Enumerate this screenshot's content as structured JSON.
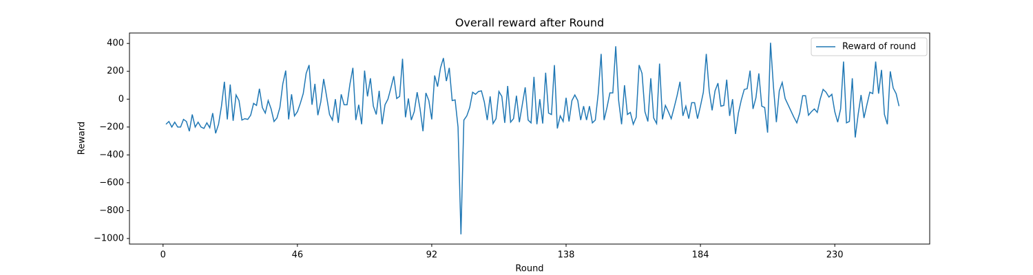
{
  "chart_data": {
    "type": "line",
    "title": "Overall reward after Round",
    "x_label": "Round",
    "y_label": "Reward",
    "x": [
      1,
      2,
      3,
      4,
      5,
      6,
      7,
      8,
      9,
      10,
      11,
      12,
      13,
      14,
      15,
      16,
      17,
      18,
      19,
      20,
      21,
      22,
      23,
      24,
      25,
      26,
      27,
      28,
      29,
      30,
      31,
      32,
      33,
      34,
      35,
      36,
      37,
      38,
      39,
      40,
      41,
      42,
      43,
      44,
      45,
      46,
      47,
      48,
      49,
      50,
      51,
      52,
      53,
      54,
      55,
      56,
      57,
      58,
      59,
      60,
      61,
      62,
      63,
      64,
      65,
      66,
      67,
      68,
      69,
      70,
      71,
      72,
      73,
      74,
      75,
      76,
      77,
      78,
      79,
      80,
      81,
      82,
      83,
      84,
      85,
      86,
      87,
      88,
      89,
      90,
      91,
      92,
      93,
      94,
      95,
      96,
      97,
      98,
      99,
      100,
      101,
      102,
      103,
      104,
      105,
      106,
      107,
      108,
      109,
      110,
      111,
      112,
      113,
      114,
      115,
      116,
      117,
      118,
      119,
      120,
      121,
      122,
      123,
      124,
      125,
      126,
      127,
      128,
      129,
      130,
      131,
      132,
      133,
      134,
      135,
      136,
      137,
      138,
      139,
      140,
      141,
      142,
      143,
      144,
      145,
      146,
      147,
      148,
      149,
      150,
      151,
      152,
      153,
      154,
      155,
      156,
      157,
      158,
      159,
      160,
      161,
      162,
      163,
      164,
      165,
      166,
      167,
      168,
      169,
      170,
      171,
      172,
      173,
      174,
      175,
      176,
      177,
      178,
      179,
      180,
      181,
      182,
      183,
      184,
      185,
      186,
      187,
      188,
      189,
      190,
      191,
      192,
      193,
      194,
      195,
      196,
      197,
      198,
      199,
      200,
      201,
      202,
      203,
      204,
      205,
      206,
      207,
      208,
      209,
      210,
      211,
      212,
      213,
      214,
      215,
      216,
      217,
      218,
      219,
      220,
      221,
      222,
      223,
      224,
      225,
      226,
      227,
      228,
      229,
      230,
      231,
      232,
      233,
      234,
      235,
      236,
      237,
      238,
      239,
      240,
      241,
      242,
      243,
      244,
      245,
      246,
      247,
      248,
      249,
      250,
      251,
      252
    ],
    "series": [
      {
        "name": "Reward of round",
        "color": "#1f77b4",
        "values": [
          -180,
          -160,
          -200,
          -165,
          -200,
          -200,
          -145,
          -160,
          -230,
          -110,
          -200,
          -165,
          -200,
          -210,
          -170,
          -205,
          -100,
          -245,
          -180,
          -50,
          125,
          -145,
          105,
          -155,
          30,
          -10,
          -150,
          -140,
          -145,
          -115,
          -30,
          -45,
          75,
          -60,
          -100,
          -10,
          -70,
          -160,
          -135,
          -60,
          110,
          205,
          -145,
          35,
          -120,
          -90,
          -30,
          40,
          185,
          245,
          -40,
          110,
          -115,
          -20,
          145,
          20,
          -110,
          -150,
          0,
          -170,
          35,
          -40,
          -40,
          110,
          225,
          -150,
          -40,
          -180,
          205,
          20,
          150,
          -50,
          -110,
          60,
          -180,
          -40,
          0,
          80,
          165,
          5,
          20,
          290,
          -130,
          5,
          -150,
          -90,
          50,
          -70,
          -230,
          45,
          -10,
          -145,
          170,
          90,
          225,
          295,
          130,
          225,
          -10,
          -5,
          -200,
          -970,
          -150,
          -120,
          -60,
          50,
          35,
          55,
          60,
          -20,
          -150,
          20,
          -175,
          -140,
          55,
          20,
          -170,
          95,
          -165,
          -140,
          25,
          -165,
          -40,
          85,
          -150,
          -170,
          160,
          -180,
          0,
          -175,
          190,
          -100,
          -110,
          245,
          -210,
          -120,
          -160,
          10,
          -160,
          -10,
          30,
          -10,
          -150,
          -50,
          -150,
          -50,
          -170,
          -150,
          40,
          325,
          -150,
          -60,
          45,
          45,
          380,
          -10,
          -180,
          100,
          -110,
          -95,
          -180,
          -130,
          245,
          185,
          -90,
          -160,
          150,
          -135,
          -175,
          255,
          -145,
          -45,
          -90,
          -140,
          -60,
          25,
          125,
          -120,
          -50,
          -140,
          -25,
          -25,
          -140,
          -50,
          50,
          325,
          60,
          -80,
          60,
          115,
          -50,
          -45,
          140,
          -120,
          0,
          -250,
          -100,
          -5,
          70,
          75,
          205,
          -70,
          10,
          185,
          -50,
          -60,
          -240,
          405,
          90,
          -165,
          60,
          120,
          5,
          -40,
          -85,
          -130,
          -170,
          -100,
          25,
          25,
          -115,
          -90,
          -70,
          -95,
          0,
          70,
          50,
          15,
          35,
          -90,
          -165,
          -70,
          270,
          -170,
          -160,
          150,
          -275,
          -110,
          30,
          -135,
          -40,
          50,
          40,
          270,
          40,
          210,
          -110,
          -180,
          200,
          80,
          40,
          -50
        ]
      }
    ],
    "xlim": [
      -11.5,
      262.5
    ],
    "ylim": [
      -1040,
      475
    ],
    "xticks": [
      0,
      46,
      92,
      138,
      184,
      230
    ],
    "yticks": [
      {
        "value": -1000,
        "label": "−1000"
      },
      {
        "value": -800,
        "label": "−800"
      },
      {
        "value": -600,
        "label": "−600"
      },
      {
        "value": -400,
        "label": "−400"
      },
      {
        "value": -200,
        "label": "−200"
      },
      0,
      200,
      400
    ],
    "grid": false,
    "legend": "upper right"
  }
}
